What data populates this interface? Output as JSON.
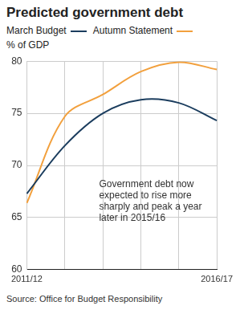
{
  "chart_data": {
    "type": "line",
    "title": "Predicted government debt",
    "y_label": "% of GDP",
    "annotation": "Government debt now expected to rise more sharply and peak a year later in 2015/16",
    "source": "Source: Office for Budget Responsibility",
    "categories": [
      "2011/12",
      null,
      null,
      null,
      null,
      "2016/17"
    ],
    "series": [
      {
        "name": "March Budget",
        "color": "#1b3d5e",
        "values": [
          67.3,
          71.9,
          75.0,
          76.3,
          76.0,
          74.3
        ]
      },
      {
        "name": "Autumn Statement",
        "color": "#f2a03d",
        "values": [
          66.4,
          74.7,
          76.8,
          79.0,
          79.9,
          79.2
        ]
      }
    ],
    "ylim": [
      60,
      80
    ],
    "yticks": [
      60,
      65,
      70,
      75,
      80
    ],
    "grid": true,
    "legend": "top-left"
  }
}
